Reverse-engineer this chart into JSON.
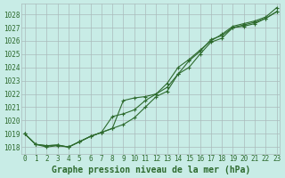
{
  "title": "Graphe pression niveau de la mer (hPa)",
  "bg_color": "#c8ece6",
  "grid_color": "#aabbbb",
  "line_color": "#2d6a2d",
  "ylim": [
    1017.5,
    1028.8
  ],
  "xlim": [
    -0.3,
    23.3
  ],
  "yticks": [
    1018,
    1019,
    1020,
    1021,
    1022,
    1023,
    1024,
    1025,
    1026,
    1027,
    1028
  ],
  "xticks": [
    0,
    1,
    2,
    3,
    4,
    5,
    6,
    7,
    8,
    9,
    10,
    11,
    12,
    13,
    14,
    15,
    16,
    17,
    18,
    19,
    20,
    21,
    22,
    23
  ],
  "line1_x": [
    0,
    1,
    2,
    3,
    4,
    5,
    6,
    7,
    8,
    9,
    10,
    11,
    12,
    13,
    14,
    15,
    16,
    17,
    18,
    19,
    20,
    21,
    22,
    23
  ],
  "line1_y": [
    1019.0,
    1018.2,
    1018.0,
    1018.1,
    1018.0,
    1018.4,
    1018.8,
    1019.1,
    1019.4,
    1019.7,
    1020.2,
    1021.0,
    1021.8,
    1022.2,
    1023.5,
    1024.0,
    1025.0,
    1025.9,
    1026.2,
    1027.0,
    1027.1,
    1027.3,
    1027.7,
    1028.2
  ],
  "line2_x": [
    0,
    1,
    2,
    3,
    4,
    5,
    6,
    7,
    8,
    9,
    10,
    11,
    12,
    13,
    14,
    15,
    16,
    17,
    18,
    19,
    20,
    21,
    22,
    23
  ],
  "line2_y": [
    1019.0,
    1018.2,
    1018.1,
    1018.15,
    1018.0,
    1018.4,
    1018.8,
    1019.1,
    1019.4,
    1021.5,
    1021.7,
    1021.8,
    1022.0,
    1022.5,
    1023.5,
    1024.5,
    1025.2,
    1026.1,
    1026.4,
    1027.0,
    1027.2,
    1027.4,
    1027.7,
    1028.2
  ],
  "line3_x": [
    0,
    1,
    2,
    3,
    4,
    5,
    6,
    7,
    8,
    9,
    10,
    11,
    12,
    13,
    14,
    15,
    16,
    17,
    18,
    19,
    20,
    21,
    22,
    23
  ],
  "line3_y": [
    1019.0,
    1018.2,
    1018.1,
    1018.15,
    1018.0,
    1018.4,
    1018.8,
    1019.1,
    1020.3,
    1020.5,
    1020.8,
    1021.5,
    1022.0,
    1022.8,
    1024.0,
    1024.6,
    1025.3,
    1026.0,
    1026.5,
    1027.1,
    1027.3,
    1027.5,
    1027.8,
    1028.5
  ],
  "tick_fontsize": 5.5,
  "title_fontsize": 7.0
}
